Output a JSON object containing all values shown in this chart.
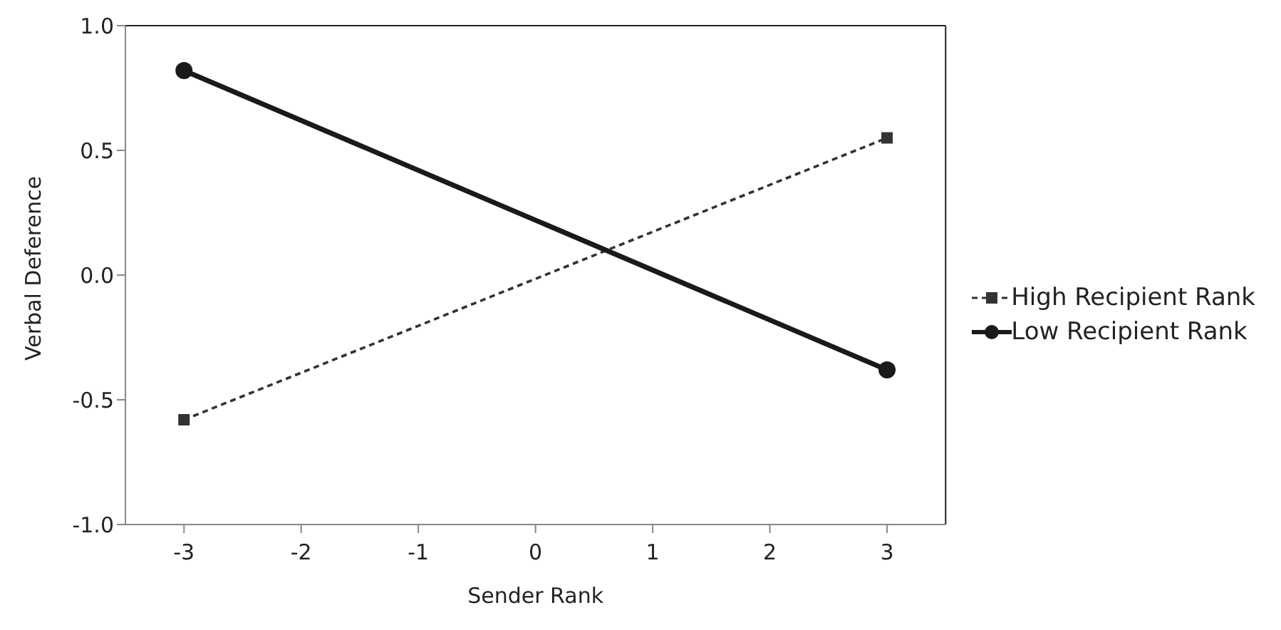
{
  "chart_data": {
    "type": "line",
    "xlabel": "Sender Rank",
    "ylabel": "Verbal Deference",
    "x": [
      -3,
      3
    ],
    "series": [
      {
        "name": "High Recipient Rank",
        "color": "#333333",
        "values": [
          -0.58,
          0.55
        ],
        "marker": "square",
        "line_style": "dashed"
      },
      {
        "name": "Low Recipient Rank",
        "color": "#1a1a1a",
        "values": [
          0.82,
          -0.38
        ],
        "marker": "circle",
        "line_style": "solid"
      }
    ],
    "xlim": [
      -3.5,
      3.5
    ],
    "xticks": [
      -3,
      -2,
      -1,
      0,
      1,
      2,
      3
    ],
    "ylim": [
      -1.0,
      1.0
    ],
    "yticks": [
      {
        "value": -1,
        "label": "-1.0"
      },
      {
        "value": -0.5,
        "label": "-0.5"
      },
      {
        "value": 0,
        "label": "0.0"
      },
      {
        "value": 0.5,
        "label": "0.5"
      },
      {
        "value": 1,
        "label": "1.0"
      }
    ],
    "grid": false,
    "legend": "right"
  }
}
